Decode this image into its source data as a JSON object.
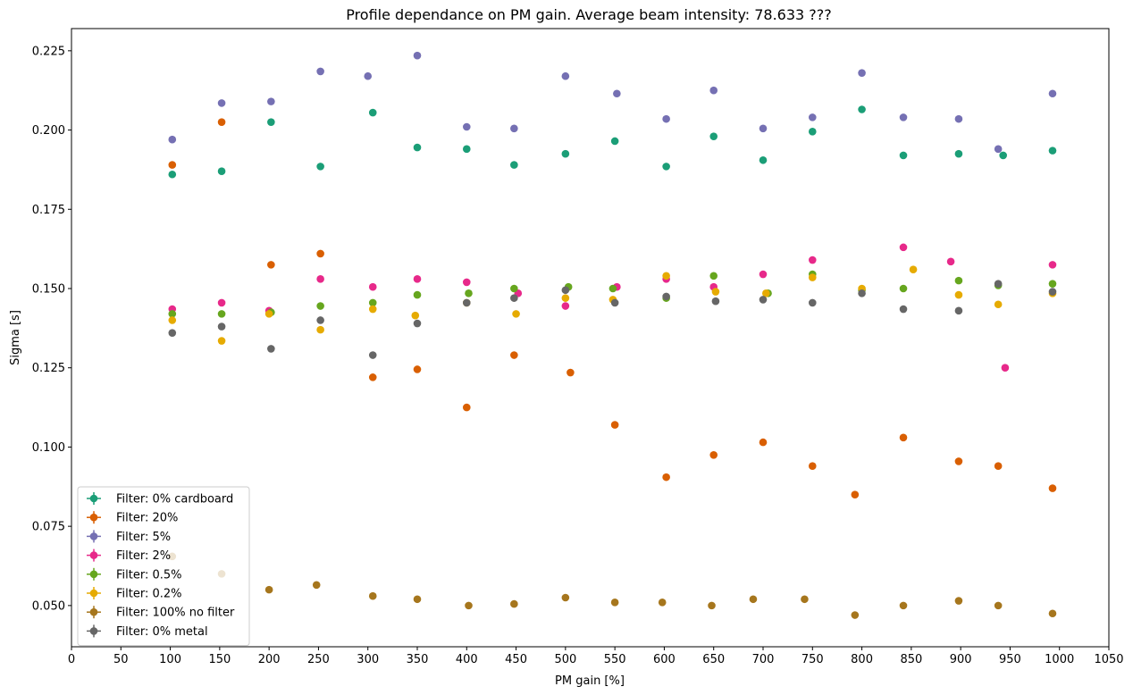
{
  "chart_data": {
    "type": "scatter",
    "title": "Profile dependance on PM gain. Average beam intensity: 78.633 ???",
    "xlabel": "PM gain [%]",
    "ylabel": "Sigma [s]",
    "xlim": [
      0,
      1050
    ],
    "ylim": [
      0.037,
      0.232
    ],
    "xticks": [
      "0",
      "50",
      "100",
      "150",
      "200",
      "250",
      "300",
      "350",
      "400",
      "450",
      "500",
      "550",
      "600",
      "650",
      "700",
      "750",
      "800",
      "850",
      "900",
      "950",
      "1000",
      "1050"
    ],
    "yticks": [
      "0.050",
      "0.075",
      "0.100",
      "0.125",
      "0.150",
      "0.175",
      "0.200",
      "0.225"
    ],
    "legend_position": "lower left",
    "grid": false,
    "series": [
      {
        "name": "Filter: 0% cardboard",
        "color": "#1b9e77",
        "x": [
          102,
          152,
          202,
          252,
          305,
          350,
          400,
          448,
          500,
          550,
          602,
          650,
          700,
          750,
          800,
          842,
          898,
          943,
          993
        ],
        "y": [
          0.186,
          0.187,
          0.2025,
          0.1885,
          0.2055,
          0.1945,
          0.194,
          0.189,
          0.1925,
          0.1965,
          0.1885,
          0.198,
          0.1905,
          0.1995,
          0.2065,
          0.192,
          0.1925,
          0.192,
          0.1935
        ]
      },
      {
        "name": "Filter: 20%",
        "color": "#d95f02",
        "x": [
          102,
          152,
          202,
          252,
          305,
          350,
          400,
          448,
          505,
          550,
          602,
          650,
          700,
          750,
          793,
          842,
          898,
          938,
          993
        ],
        "y": [
          0.189,
          0.2025,
          0.1575,
          0.161,
          0.122,
          0.1245,
          0.1125,
          0.129,
          0.1235,
          0.107,
          0.0905,
          0.0975,
          0.1015,
          0.094,
          0.085,
          0.103,
          0.0955,
          0.094,
          0.087
        ]
      },
      {
        "name": "Filter: 5%",
        "color": "#7570b3",
        "x": [
          102,
          152,
          202,
          252,
          300,
          350,
          400,
          448,
          500,
          552,
          602,
          650,
          700,
          750,
          800,
          842,
          898,
          938,
          993
        ],
        "y": [
          0.197,
          0.2085,
          0.209,
          0.2185,
          0.217,
          0.2235,
          0.201,
          0.2005,
          0.217,
          0.2115,
          0.2035,
          0.2125,
          0.2005,
          0.204,
          0.218,
          0.204,
          0.2035,
          0.194,
          0.2115
        ]
      },
      {
        "name": "Filter: 2%",
        "color": "#e7298a",
        "x": [
          102,
          152,
          200,
          252,
          305,
          350,
          400,
          452,
          500,
          552,
          602,
          650,
          700,
          750,
          842,
          890,
          945,
          993
        ],
        "y": [
          0.1435,
          0.1455,
          0.143,
          0.153,
          0.1505,
          0.153,
          0.152,
          0.1485,
          0.1445,
          0.1505,
          0.153,
          0.1505,
          0.1545,
          0.159,
          0.163,
          0.1585,
          0.125,
          0.1575
        ]
      },
      {
        "name": "Filter: 0.5%",
        "color": "#66a61e",
        "x": [
          102,
          152,
          202,
          252,
          305,
          350,
          402,
          448,
          503,
          548,
          602,
          650,
          705,
          750,
          800,
          842,
          898,
          938,
          993
        ],
        "y": [
          0.142,
          0.142,
          0.1425,
          0.1445,
          0.1455,
          0.148,
          0.1485,
          0.15,
          0.1505,
          0.15,
          0.147,
          0.154,
          0.1485,
          0.1545,
          0.1495,
          0.15,
          0.1525,
          0.151,
          0.1515
        ]
      },
      {
        "name": "Filter: 0.2%",
        "color": "#e6ab02",
        "x": [
          102,
          152,
          200,
          252,
          305,
          348,
          400,
          450,
          500,
          548,
          602,
          652,
          703,
          750,
          800,
          852,
          898,
          938,
          993
        ],
        "y": [
          0.14,
          0.1335,
          0.142,
          0.137,
          0.1435,
          0.1415,
          0.1455,
          0.142,
          0.147,
          0.1465,
          0.154,
          0.149,
          0.1485,
          0.1535,
          0.15,
          0.156,
          0.148,
          0.145,
          0.1485
        ]
      },
      {
        "name": "Filter: 100% no filter",
        "color": "#a6761d",
        "x": [
          102,
          152,
          200,
          248,
          305,
          350,
          402,
          448,
          500,
          550,
          598,
          648,
          690,
          742,
          793,
          842,
          898,
          938,
          993
        ],
        "y": [
          0.0655,
          0.06,
          0.055,
          0.0565,
          0.053,
          0.052,
          0.05,
          0.0505,
          0.0525,
          0.051,
          0.051,
          0.05,
          0.052,
          0.052,
          0.047,
          0.05,
          0.0515,
          0.05,
          0.0475
        ]
      },
      {
        "name": "Filter: 0% metal",
        "color": "#666666",
        "x": [
          102,
          152,
          202,
          252,
          305,
          350,
          400,
          448,
          500,
          550,
          602,
          652,
          700,
          750,
          800,
          842,
          898,
          938,
          993
        ],
        "y": [
          0.136,
          0.138,
          0.131,
          0.14,
          0.129,
          0.139,
          0.1455,
          0.147,
          0.1495,
          0.1455,
          0.1475,
          0.146,
          0.1465,
          0.1455,
          0.1485,
          0.1435,
          0.143,
          0.1515,
          0.149
        ]
      }
    ]
  }
}
